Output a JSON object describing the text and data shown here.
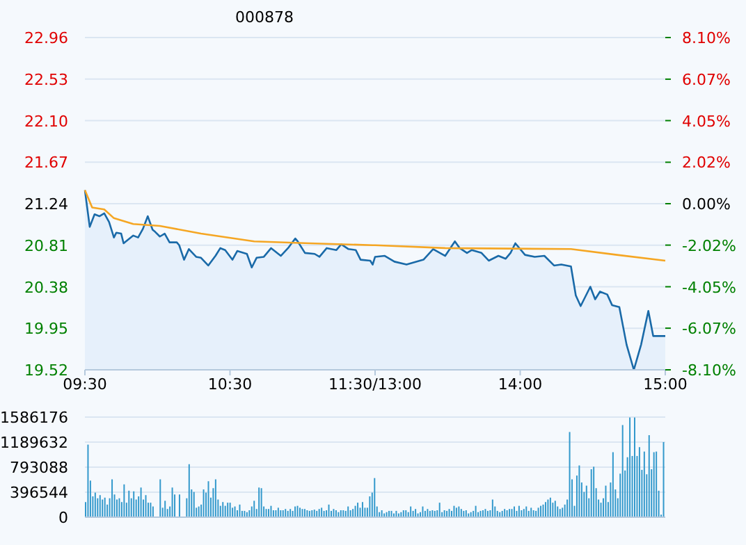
{
  "chart_data": [
    {
      "type": "line",
      "title": "000878",
      "categories": [
        "09:30",
        null,
        null,
        null,
        null,
        null,
        null,
        null,
        null,
        null,
        null,
        null,
        null,
        null,
        null,
        null,
        null,
        null,
        null,
        null,
        null,
        null,
        null,
        null,
        null,
        null,
        null,
        null,
        null,
        null,
        null,
        null,
        null,
        null,
        null,
        null,
        null,
        null,
        null,
        null,
        null,
        null,
        null,
        null,
        null,
        null,
        null,
        null,
        null,
        null,
        null,
        null,
        null,
        null,
        null,
        null,
        null,
        null,
        null,
        null,
        "10:30",
        null,
        null,
        null,
        null,
        null,
        null,
        null,
        null,
        null,
        null,
        null,
        null,
        null,
        null,
        null,
        null,
        null,
        null,
        null,
        null,
        null,
        null,
        null,
        null,
        null,
        null,
        null,
        null,
        null,
        null,
        null,
        null,
        null,
        null,
        null,
        null,
        null,
        null,
        null,
        null,
        null,
        null,
        null,
        null,
        null,
        null,
        null,
        null,
        null,
        null,
        null,
        null,
        null,
        null,
        null,
        null,
        null,
        null,
        null,
        "11:30/13:00",
        null,
        null,
        null,
        null,
        null,
        null,
        null,
        null,
        null,
        null,
        null,
        null,
        null,
        null,
        null,
        null,
        null,
        null,
        null,
        null,
        null,
        null,
        null,
        null,
        null,
        null,
        null,
        null,
        null,
        null,
        null,
        null,
        null,
        null,
        null,
        null,
        null,
        null,
        null,
        null,
        null,
        null,
        null,
        null,
        null,
        null,
        null,
        null,
        null,
        null,
        null,
        null,
        null,
        null,
        null,
        null,
        null,
        null,
        null,
        "14:00",
        null,
        null,
        null,
        null,
        null,
        null,
        null,
        null,
        null,
        null,
        null,
        null,
        null,
        null,
        null,
        null,
        null,
        null,
        null,
        null,
        null,
        null,
        null,
        null,
        null,
        null,
        null,
        null,
        null,
        null,
        null,
        null,
        null,
        null,
        null,
        null,
        null,
        null,
        null,
        null,
        null,
        null,
        null,
        null,
        null,
        null,
        null,
        null,
        null,
        null,
        null,
        null,
        null,
        null,
        null,
        null,
        null,
        null,
        null,
        "15:00"
      ],
      "ylim": [
        19.52,
        22.96
      ],
      "yticks": [
        19.52,
        19.95,
        20.38,
        20.81,
        21.24,
        21.67,
        {
          "value": 22.1,
          "label": "22.10"
        },
        22.53,
        22.96
      ],
      "y2lim": [
        -8.1,
        8.1
      ],
      "y2ticks": [
        {
          "value": -8.1,
          "label": "-8.10%"
        },
        {
          "value": -6.07,
          "label": "-6.07%"
        },
        {
          "value": -4.05,
          "label": "-4.05%"
        },
        {
          "value": -2.02,
          "label": "-2.02%"
        },
        {
          "value": 0,
          "label": "0.00%"
        },
        {
          "value": 2.02,
          "label": "2.02%"
        },
        {
          "value": 4.05,
          "label": "4.05%"
        },
        {
          "value": 6.07,
          "label": "6.07%"
        },
        {
          "value": 8.1,
          "label": "8.10%"
        }
      ],
      "grid": "y",
      "series": [
        {
          "type": "area",
          "color": "#1a6aa8",
          "values": [
            21.38,
            null,
            21.0,
            null,
            21.13,
            null,
            21.11,
            null,
            21.14,
            null,
            21.05,
            null,
            20.89,
            20.94,
            null,
            20.93,
            20.83,
            null,
            null,
            null,
            20.91,
            null,
            20.89,
            null,
            20.98,
            null,
            21.11,
            null,
            20.97,
            20.95,
            null,
            20.9,
            null,
            20.93,
            null,
            20.84,
            null,
            null,
            20.84,
            20.81,
            null,
            20.66,
            null,
            20.77,
            null,
            null,
            20.69,
            null,
            20.68,
            null,
            null,
            20.6,
            null,
            null,
            20.7,
            null,
            20.78,
            null,
            20.76,
            null,
            null,
            20.66,
            null,
            20.75,
            null,
            null,
            null,
            20.72,
            null,
            20.58,
            null,
            20.68,
            null,
            null,
            20.69,
            null,
            null,
            20.78,
            null,
            null,
            null,
            20.7,
            null,
            null,
            20.78,
            null,
            null,
            20.88,
            20.85,
            null,
            null,
            20.73,
            null,
            null,
            null,
            20.72,
            null,
            20.69,
            null,
            null,
            20.78,
            null,
            null,
            null,
            20.76,
            null,
            20.82,
            null,
            null,
            20.77,
            null,
            null,
            20.76,
            null,
            20.66,
            null,
            null,
            null,
            20.65,
            20.61,
            20.69,
            null,
            null,
            null,
            20.7,
            null,
            null,
            null,
            20.64,
            null,
            null,
            null,
            null,
            20.61,
            null,
            null,
            null,
            null,
            null,
            null,
            20.66,
            null,
            null,
            null,
            20.77,
            null,
            null,
            null,
            null,
            20.7,
            null,
            null,
            null,
            20.85,
            null,
            20.78,
            null,
            null,
            20.73,
            null,
            20.76,
            null,
            null,
            null,
            20.73,
            null,
            null,
            20.65,
            null,
            null,
            null,
            20.7,
            null,
            null,
            20.67,
            null,
            20.73,
            null,
            20.83,
            null,
            null,
            null,
            20.71,
            null,
            null,
            null,
            20.69,
            null,
            null,
            null,
            20.7,
            null,
            null,
            null,
            20.6,
            null,
            null,
            20.61,
            null,
            null,
            null,
            20.59,
            null,
            20.29,
            null,
            20.18,
            null,
            null,
            null,
            20.38,
            null,
            20.25,
            null,
            20.33,
            null,
            null,
            20.3,
            null,
            20.19,
            null,
            null,
            20.17,
            null,
            null,
            19.78,
            null,
            null,
            19.52,
            null,
            null,
            19.78,
            null,
            null,
            20.13,
            null,
            19.87,
            null,
            null,
            null,
            19.87,
            19.87
          ]
        },
        {
          "color": "#f5a623",
          "values": [
            21.38,
            null,
            null,
            21.2,
            null,
            null,
            null,
            null,
            21.18,
            null,
            null,
            null,
            21.09,
            null,
            null,
            null,
            null,
            null,
            null,
            null,
            21.03,
            null,
            null,
            null,
            null,
            null,
            null,
            null,
            null,
            null,
            null,
            21.01,
            null,
            null,
            null,
            null,
            null,
            null,
            null,
            null,
            null,
            null,
            null,
            null,
            null,
            null,
            null,
            null,
            20.93,
            null,
            null,
            null,
            null,
            null,
            null,
            null,
            null,
            null,
            null,
            null,
            null,
            null,
            null,
            null,
            null,
            null,
            null,
            null,
            null,
            null,
            20.85,
            null,
            null,
            null,
            null,
            null,
            null,
            null,
            null,
            null,
            null,
            null,
            null,
            null,
            null,
            null,
            null,
            null,
            null,
            null,
            null,
            null,
            null,
            20.83,
            null,
            null,
            null,
            null,
            null,
            null,
            null,
            null,
            null,
            null,
            null,
            null,
            null,
            null,
            null,
            null,
            null,
            null,
            null,
            null,
            null,
            null,
            null,
            null,
            null,
            20.81,
            20.81,
            null,
            null,
            null,
            null,
            null,
            null,
            null,
            null,
            null,
            null,
            null,
            null,
            null,
            null,
            null,
            null,
            null,
            null,
            null,
            null,
            null,
            null,
            null,
            null,
            null,
            null,
            null,
            null,
            20.78,
            null,
            null,
            null,
            null,
            null,
            null,
            null,
            null,
            null,
            null,
            null,
            null,
            null,
            null,
            null,
            null,
            null,
            null,
            null,
            null,
            null,
            null,
            null,
            null,
            null,
            null,
            null,
            null,
            null,
            null,
            null,
            null,
            null,
            null,
            null,
            null,
            null,
            null,
            null,
            null,
            null,
            null,
            null,
            null,
            null,
            null,
            null,
            null,
            null,
            null,
            null,
            20.77,
            null,
            null,
            null,
            null,
            null,
            null,
            null,
            null,
            null,
            null,
            null,
            null,
            null,
            null,
            null,
            null,
            null,
            null,
            20.71,
            null,
            null,
            null,
            null,
            null,
            null,
            null,
            null,
            null,
            null,
            null,
            null,
            null,
            null,
            null,
            null,
            null,
            null,
            null,
            20.65
          ]
        }
      ]
    },
    {
      "type": "bar",
      "ylim": [
        0,
        1586176
      ],
      "yticks": [
        0,
        396544,
        793088,
        1189632,
        1586176
      ],
      "grid": "y",
      "tick_labels": "y",
      "categories": [
        null,
        null,
        null,
        null,
        null,
        null,
        null,
        null,
        null,
        null,
        null,
        null,
        null,
        null,
        null,
        null,
        null,
        null,
        null,
        null,
        null,
        null,
        null,
        null,
        null,
        null,
        null,
        null,
        null,
        null,
        null,
        null,
        null,
        null,
        null,
        null,
        null,
        null,
        null,
        null,
        null,
        null,
        null,
        null,
        null,
        null,
        null,
        null,
        null,
        null,
        null,
        null,
        null,
        null,
        null,
        null,
        null,
        null,
        null,
        null,
        null,
        null,
        null,
        null,
        null,
        null,
        null,
        null,
        null,
        null,
        null,
        null,
        null,
        null,
        null,
        null,
        null,
        null,
        null,
        null,
        null,
        null,
        null,
        null,
        null,
        null,
        null,
        null,
        null,
        null,
        null,
        null,
        null,
        null,
        null,
        null,
        null,
        null,
        null,
        null,
        null,
        null,
        null,
        null,
        null,
        null,
        null,
        null,
        null,
        null,
        null,
        null,
        null,
        null,
        null,
        null,
        null,
        null,
        null,
        null,
        null,
        null,
        null,
        null,
        null,
        null,
        null,
        null,
        null,
        null,
        null,
        null,
        null,
        null,
        null,
        null,
        null,
        null,
        null,
        null,
        null,
        null,
        null,
        null,
        null,
        null,
        null,
        null,
        null,
        null,
        null,
        null,
        null,
        null,
        null,
        null,
        null,
        null,
        null,
        null,
        null,
        null,
        null,
        null,
        null,
        null,
        null,
        null,
        null,
        null,
        null,
        null,
        null,
        null,
        null,
        null,
        null,
        null,
        null,
        null,
        null,
        null,
        null,
        null,
        null,
        null,
        null,
        null,
        null,
        null,
        null,
        null,
        null,
        null,
        null,
        null,
        null,
        null,
        null,
        null,
        null,
        null,
        null,
        null,
        null,
        null,
        null,
        null,
        null,
        null,
        null,
        null,
        null,
        null,
        null,
        null,
        null,
        null,
        null,
        null,
        null,
        null,
        null,
        null,
        null,
        null,
        null,
        null,
        null,
        null,
        null,
        null,
        null,
        null,
        null,
        null,
        null,
        null,
        null,
        null,
        null
      ],
      "series": [
        {
          "color": "#3399cc",
          "values": [
            240000,
            1150000,
            580000,
            330000,
            390000,
            300000,
            350000,
            280000,
            310000,
            200000,
            300000,
            600000,
            360000,
            280000,
            300000,
            240000,
            520000,
            230000,
            420000,
            300000,
            410000,
            280000,
            330000,
            470000,
            280000,
            350000,
            230000,
            230000,
            170000,
            null,
            null,
            600000,
            150000,
            260000,
            130000,
            170000,
            470000,
            360000,
            null,
            360000,
            null,
            null,
            300000,
            840000,
            440000,
            400000,
            150000,
            170000,
            200000,
            440000,
            390000,
            570000,
            310000,
            460000,
            600000,
            280000,
            180000,
            240000,
            180000,
            230000,
            230000,
            150000,
            170000,
            110000,
            200000,
            100000,
            100000,
            80000,
            110000,
            170000,
            260000,
            130000,
            470000,
            460000,
            170000,
            130000,
            130000,
            180000,
            110000,
            110000,
            150000,
            110000,
            110000,
            130000,
            100000,
            130000,
            100000,
            170000,
            180000,
            150000,
            130000,
            130000,
            110000,
            100000,
            110000,
            120000,
            100000,
            130000,
            150000,
            100000,
            110000,
            200000,
            100000,
            130000,
            110000,
            80000,
            110000,
            110000,
            100000,
            170000,
            110000,
            130000,
            180000,
            230000,
            150000,
            240000,
            150000,
            150000,
            330000,
            390000,
            620000,
            170000,
            80000,
            110000,
            60000,
            80000,
            100000,
            100000,
            60000,
            100000,
            60000,
            80000,
            110000,
            110000,
            80000,
            170000,
            100000,
            130000,
            60000,
            80000,
            170000,
            100000,
            130000,
            100000,
            110000,
            100000,
            110000,
            230000,
            80000,
            110000,
            100000,
            130000,
            100000,
            180000,
            150000,
            170000,
            130000,
            100000,
            110000,
            60000,
            80000,
            100000,
            180000,
            80000,
            100000,
            110000,
            130000,
            100000,
            110000,
            280000,
            170000,
            100000,
            80000,
            100000,
            130000,
            110000,
            130000,
            130000,
            170000,
            100000,
            180000,
            110000,
            130000,
            170000,
            100000,
            150000,
            110000,
            100000,
            150000,
            180000,
            200000,
            240000,
            280000,
            310000,
            230000,
            260000,
            170000,
            130000,
            150000,
            200000,
            280000,
            1350000,
            600000,
            180000,
            660000,
            820000,
            550000,
            400000,
            500000,
            300000,
            760000,
            800000,
            460000,
            280000,
            230000,
            300000,
            500000,
            240000,
            550000,
            1030000,
            440000,
            300000,
            690000,
            1460000,
            740000,
            950000,
            1580000,
            970000,
            1580000,
            970000,
            1110000,
            750000,
            1040000,
            680000,
            1300000,
            760000,
            1030000,
            1040000,
            420000,
            40000,
            1190000
          ]
        }
      ]
    }
  ]
}
